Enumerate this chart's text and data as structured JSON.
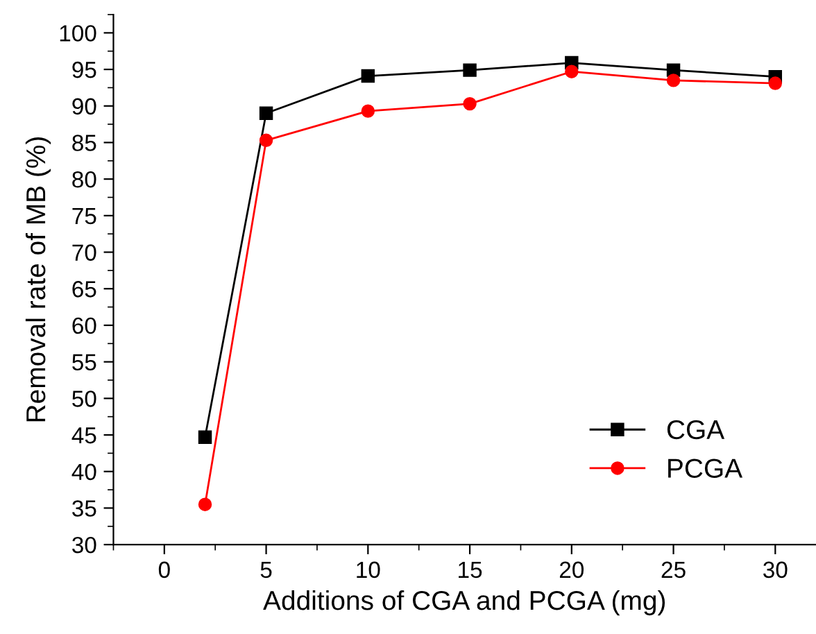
{
  "chart_data": {
    "type": "line",
    "xlabel": "Additions of CGA and PCGA (mg)",
    "ylabel": "Removal rate of MB (%)",
    "x": [
      2,
      5,
      10,
      15,
      20,
      25,
      30
    ],
    "series": [
      {
        "name": "CGA",
        "color": "#000000",
        "marker": "square",
        "values": [
          44.7,
          89.0,
          94.1,
          94.9,
          95.9,
          94.9,
          94.0
        ]
      },
      {
        "name": "PCGA",
        "color": "#ff0000",
        "marker": "circle",
        "values": [
          35.5,
          85.3,
          89.3,
          90.3,
          94.7,
          93.5,
          93.1
        ]
      }
    ],
    "xlim": [
      -2.5,
      32
    ],
    "ylim": [
      30,
      102.5
    ],
    "xticks": [
      0,
      5,
      10,
      15,
      20,
      25,
      30
    ],
    "yticks": [
      30,
      35,
      40,
      45,
      50,
      55,
      60,
      65,
      70,
      75,
      80,
      85,
      90,
      95,
      100
    ],
    "grid": false,
    "legend": "bottom right",
    "line_style": "solid"
  }
}
